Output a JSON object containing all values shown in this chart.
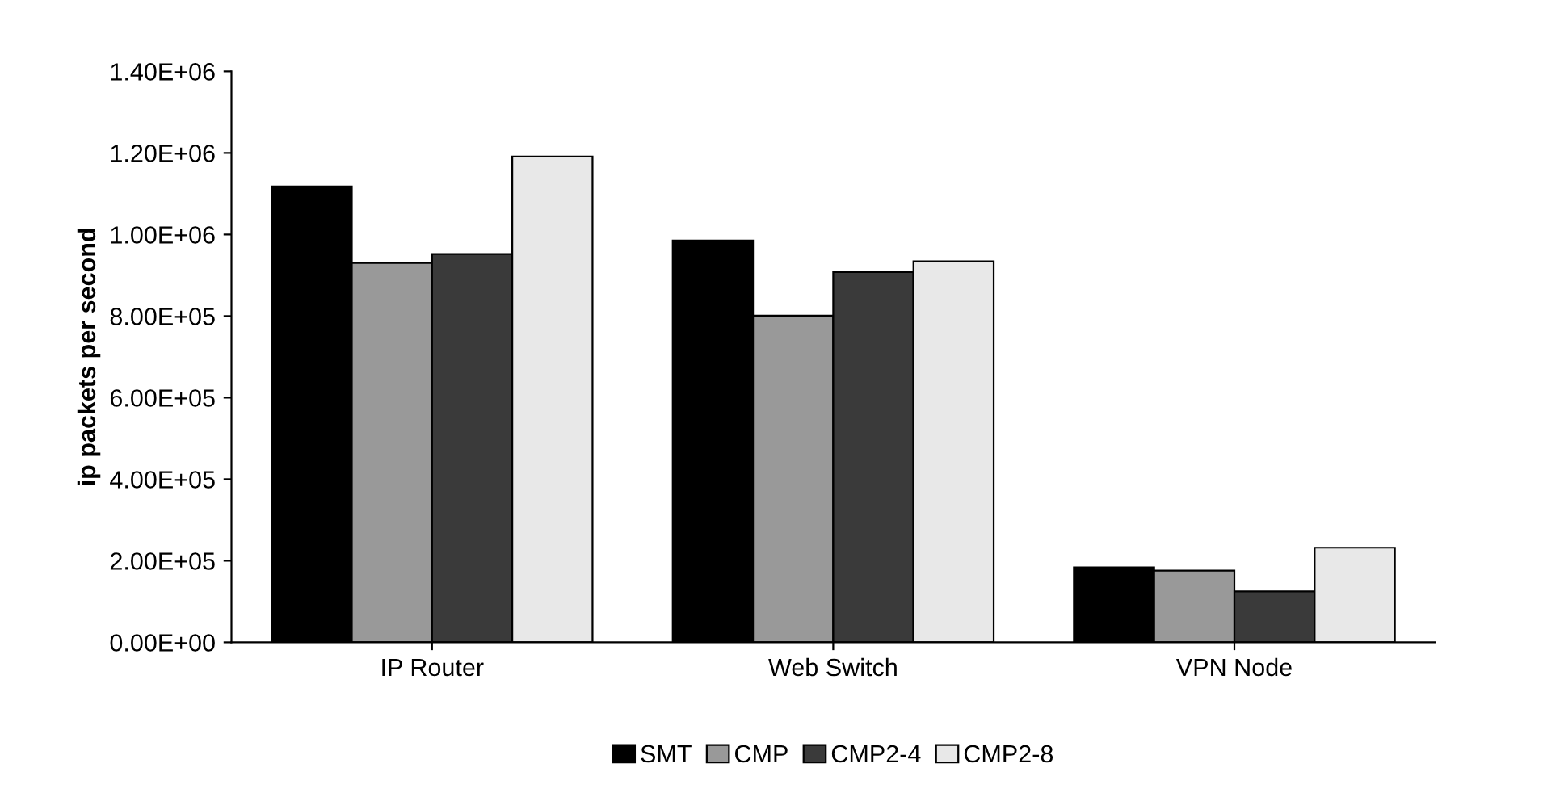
{
  "chart_data": {
    "type": "bar",
    "ylabel": "ip packets per second",
    "categories": [
      "IP Router",
      "Web Switch",
      "VPN Node"
    ],
    "series": [
      {
        "name": "SMT",
        "color": "#000000",
        "values": [
          1118000,
          985000,
          184000
        ]
      },
      {
        "name": "CMP",
        "color": "#999999",
        "values": [
          930000,
          801000,
          176000
        ]
      },
      {
        "name": "CMP2-4",
        "color": "#3a3a3a",
        "values": [
          952000,
          908000,
          125000
        ]
      },
      {
        "name": "CMP2-8",
        "color": "#e8e8e8",
        "values": [
          1191000,
          934000,
          232000
        ]
      }
    ],
    "ylim": [
      0,
      1400000
    ],
    "yticks": [
      {
        "value": 0,
        "label": "0.00E+00"
      },
      {
        "value": 200000,
        "label": "2.00E+05"
      },
      {
        "value": 400000,
        "label": "4.00E+05"
      },
      {
        "value": 600000,
        "label": "6.00E+05"
      },
      {
        "value": 800000,
        "label": "8.00E+05"
      },
      {
        "value": 1000000,
        "label": "1.00E+06"
      },
      {
        "value": 1200000,
        "label": "1.20E+06"
      },
      {
        "value": 1400000,
        "label": "1.40E+06"
      }
    ],
    "grid": false,
    "legend": "bottom"
  }
}
